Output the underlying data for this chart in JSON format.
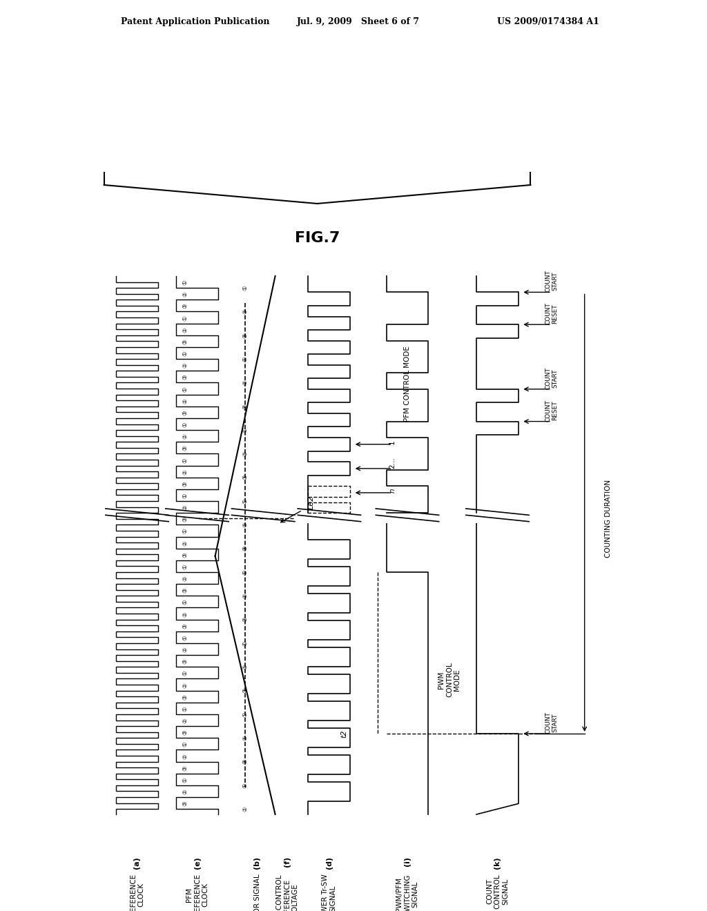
{
  "header_left": "Patent Application Publication",
  "header_mid": "Jul. 9, 2009   Sheet 6 of 7",
  "header_right": "US 2009/0174384 A1",
  "fig_label": "FIG.7",
  "background": "#ffffff"
}
